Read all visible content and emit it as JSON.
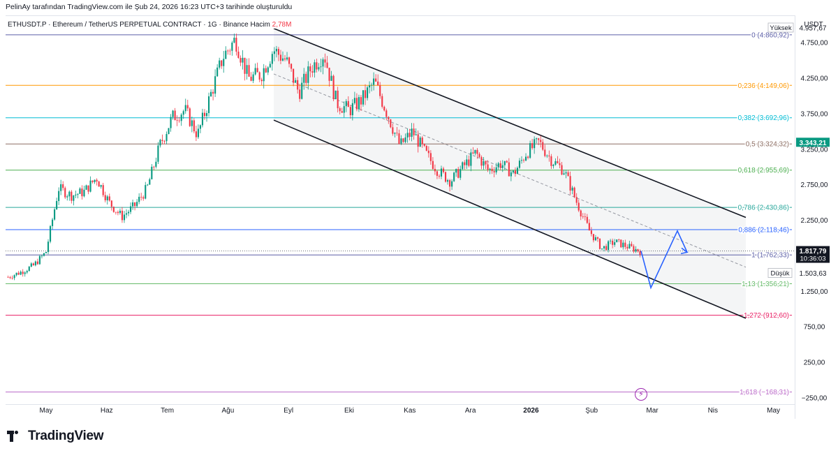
{
  "header": {
    "credit": "PelinAy tarafından TradingView.com ile Şub 24, 2026 16:23 UTC+3 tarihinde oluşturuldu",
    "symbol": "ETHUSDT.P · Ethereum / TetherUS PERPETUAL CONTRACT · 1G · Binance",
    "volume_label": "Hacim",
    "volume_value": "2,78M"
  },
  "footer": {
    "brand": "TradingView"
  },
  "colors": {
    "up": "#089981",
    "down": "#f23645",
    "channel": "#131722",
    "projection": "#2962ff"
  },
  "chart_data": {
    "type": "candlestick",
    "currency": "USDT",
    "ylim": [
      -250,
      4957.67
    ],
    "x_ticks": [
      "May",
      "Haz",
      "Tem",
      "Ağu",
      "Eyl",
      "Eki",
      "Kas",
      "Ara",
      "2026",
      "Şub",
      "Mar",
      "Nis",
      "May"
    ],
    "y_ticks": [
      {
        "value": 4750,
        "label": "4.750,00"
      },
      {
        "value": 4250,
        "label": "4.250,00"
      },
      {
        "value": 3750,
        "label": "3.750,00"
      },
      {
        "value": 3250,
        "label": "3.250,00"
      },
      {
        "value": 2750,
        "label": "2.750,00"
      },
      {
        "value": 2250,
        "label": "2.250,00"
      },
      {
        "value": 1250,
        "label": "1.250,00"
      },
      {
        "value": 750,
        "label": "750,00"
      },
      {
        "value": 250,
        "label": "250,00"
      },
      {
        "value": -250,
        "label": "−250,00"
      }
    ],
    "fib_levels": [
      {
        "ratio": "0",
        "price": 4860.92,
        "label": "0 (4.860,92)",
        "color": "#5b5ea6"
      },
      {
        "ratio": "0,236",
        "price": 4149.06,
        "label": "0,236 (4.149,06)",
        "color": "#ff9800"
      },
      {
        "ratio": "0,382",
        "price": 3692.96,
        "label": "0,382 (3.692,96)",
        "color": "#00bcd4"
      },
      {
        "ratio": "0,5",
        "price": 3324.32,
        "label": "0,5 (3.324,32)",
        "color": "#8d6e63"
      },
      {
        "ratio": "0,618",
        "price": 2955.69,
        "label": "0,618 (2.955,69)",
        "color": "#4caf50"
      },
      {
        "ratio": "0,786",
        "price": 2430.86,
        "label": "0,786 (2.430,86)",
        "color": "#26a69a"
      },
      {
        "ratio": "0,886",
        "price": 2118.46,
        "label": "0,886 (2.118,46)",
        "color": "#2962ff"
      },
      {
        "ratio": "1",
        "price": 1762.33,
        "label": "1 (1.762,33)",
        "color": "#5b5ea6"
      },
      {
        "ratio": "1,13",
        "price": 1356.21,
        "label": "1,13 (1.356,21)",
        "color": "#66bb6a"
      },
      {
        "ratio": "1,272",
        "price": 912.6,
        "label": "1,272 (912,60)",
        "color": "#e91e63"
      },
      {
        "ratio": "1,618",
        "price": -168.31,
        "label": "1,618 (−168,31)",
        "color": "#ba68c8"
      }
    ],
    "markers": {
      "high_label": "Yüksek",
      "high_value": "4.957,67",
      "low_label": "Düşük",
      "low_value": "1.503,63",
      "current_price": "1.817,79",
      "countdown": "10:36:03",
      "secondary_tag": "3.343,21"
    },
    "channel": {
      "upper": [
        [
          0,
          4950
        ],
        [
          1,
          2290
        ]
      ],
      "lower": [
        [
          0,
          3660
        ],
        [
          1,
          870
        ]
      ],
      "middle": [
        [
          0,
          4310
        ],
        [
          1,
          1590
        ]
      ]
    },
    "projection_path": [
      1818,
      1300,
      2100,
      1800
    ],
    "price_path": [
      1450,
      1520,
      1610,
      1800,
      2700,
      2600,
      2650,
      2850,
      2500,
      2300,
      2450,
      2700,
      3300,
      3700,
      3800,
      3450,
      4000,
      4550,
      4800,
      4250,
      4300,
      4650,
      4500,
      4050,
      4400,
      4600,
      3900,
      3800,
      3950,
      4200,
      3750,
      3300,
      3500,
      3200,
      2950,
      2800,
      3000,
      3200,
      2950,
      3050,
      2900,
      3200,
      3350,
      3100,
      2950,
      2500,
      2100,
      1850,
      1950,
      1880,
      1818
    ]
  }
}
